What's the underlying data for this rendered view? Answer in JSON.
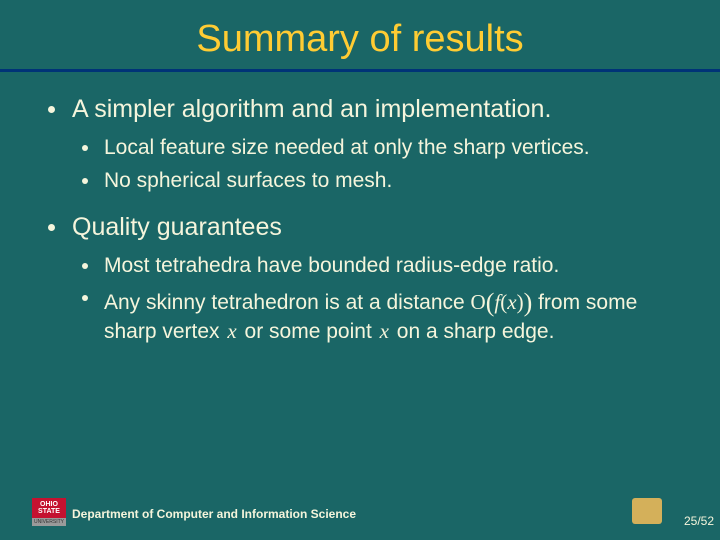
{
  "colors": {
    "slide_bg": "#1a6666",
    "title_color": "#ffcc33",
    "rule_color": "#003377",
    "text_color": "#f5f5dc",
    "bullet_color": "#f5f5dc",
    "logo_red": "#c41230",
    "logo_white": "#ffffff",
    "logo_gray": "#9a9a9a",
    "logo_right_bg": "#d4b05a",
    "dept_color": "#f5f5dc",
    "pager_color": "#f5f5dc"
  },
  "title": "Summary of results",
  "bullets": [
    {
      "text": "A simpler algorithm and an implementation.",
      "children": [
        {
          "text": "Local feature size needed at only the sharp vertices."
        },
        {
          "text": "No spherical surfaces to mesh."
        }
      ]
    },
    {
      "text": "Quality guarantees",
      "children": [
        {
          "text": "Most tetrahedra have bounded radius-edge ratio."
        },
        {
          "segments": [
            {
              "t": "Any skinny tetrahedron is at a distance "
            },
            {
              "math": "O(f(x))"
            },
            {
              "t": " from some sharp vertex "
            },
            {
              "var": "x"
            },
            {
              "t": " or some point "
            },
            {
              "var": "x"
            },
            {
              "t": " on a sharp edge."
            }
          ]
        }
      ]
    }
  ],
  "footer": {
    "logo_left_top": "OHIO",
    "logo_left_mid": "STATE",
    "logo_left_bottom": "UNIVERSITY",
    "department": "Department of Computer and Information Science",
    "pager": "25/52"
  },
  "typography": {
    "title_fontsize": 38,
    "l1_fontsize": 25,
    "l2_fontsize": 21,
    "dept_fontsize": 12,
    "pager_fontsize": 12
  }
}
